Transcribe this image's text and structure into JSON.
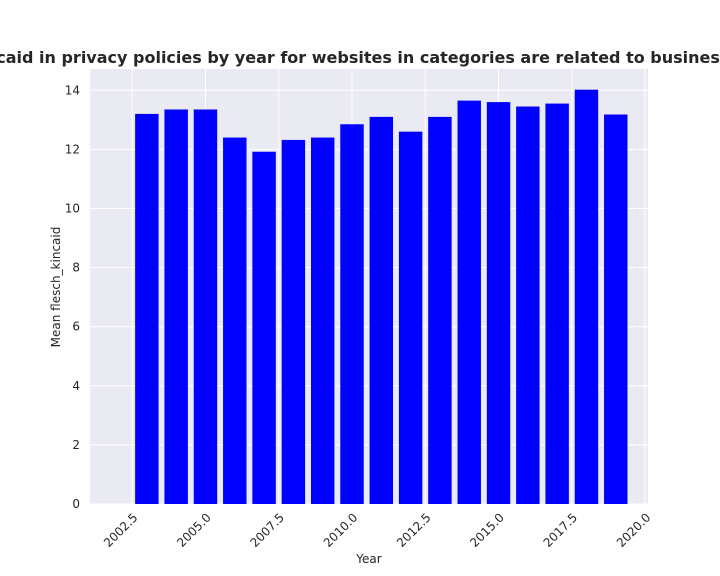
{
  "chart_data": {
    "type": "bar",
    "title": "Mean flesch_kincaid in privacy policies by year for websites in categories are related to business;health;shopping",
    "xlabel": "Year",
    "ylabel": "Mean flesch_kincaid",
    "x": [
      2003,
      2004,
      2005,
      2006,
      2007,
      2008,
      2009,
      2010,
      2011,
      2012,
      2013,
      2014,
      2015,
      2016,
      2017,
      2018,
      2019
    ],
    "values": [
      13.2,
      13.35,
      13.35,
      12.4,
      11.92,
      12.32,
      12.4,
      12.85,
      13.1,
      12.6,
      13.1,
      13.65,
      13.6,
      13.45,
      13.55,
      14.02,
      13.18
    ],
    "xlim": [
      2001.06,
      2020.1
    ],
    "ylim": [
      0,
      14.72
    ],
    "xticks": [
      2002.5,
      2005.0,
      2007.5,
      2010.0,
      2012.5,
      2015.0,
      2017.5,
      2020.0
    ],
    "xtick_labels": [
      "2002.5",
      "2005.0",
      "2007.5",
      "2010.0",
      "2012.5",
      "2015.0",
      "2017.5",
      "2020.0"
    ],
    "yticks": [
      0,
      2,
      4,
      6,
      8,
      10,
      12,
      14
    ],
    "ytick_labels": [
      "0",
      "2",
      "4",
      "6",
      "8",
      "10",
      "12",
      "14"
    ],
    "bar_color": "#0000ff",
    "plot_background": "#eaeaf2",
    "grid": true
  }
}
